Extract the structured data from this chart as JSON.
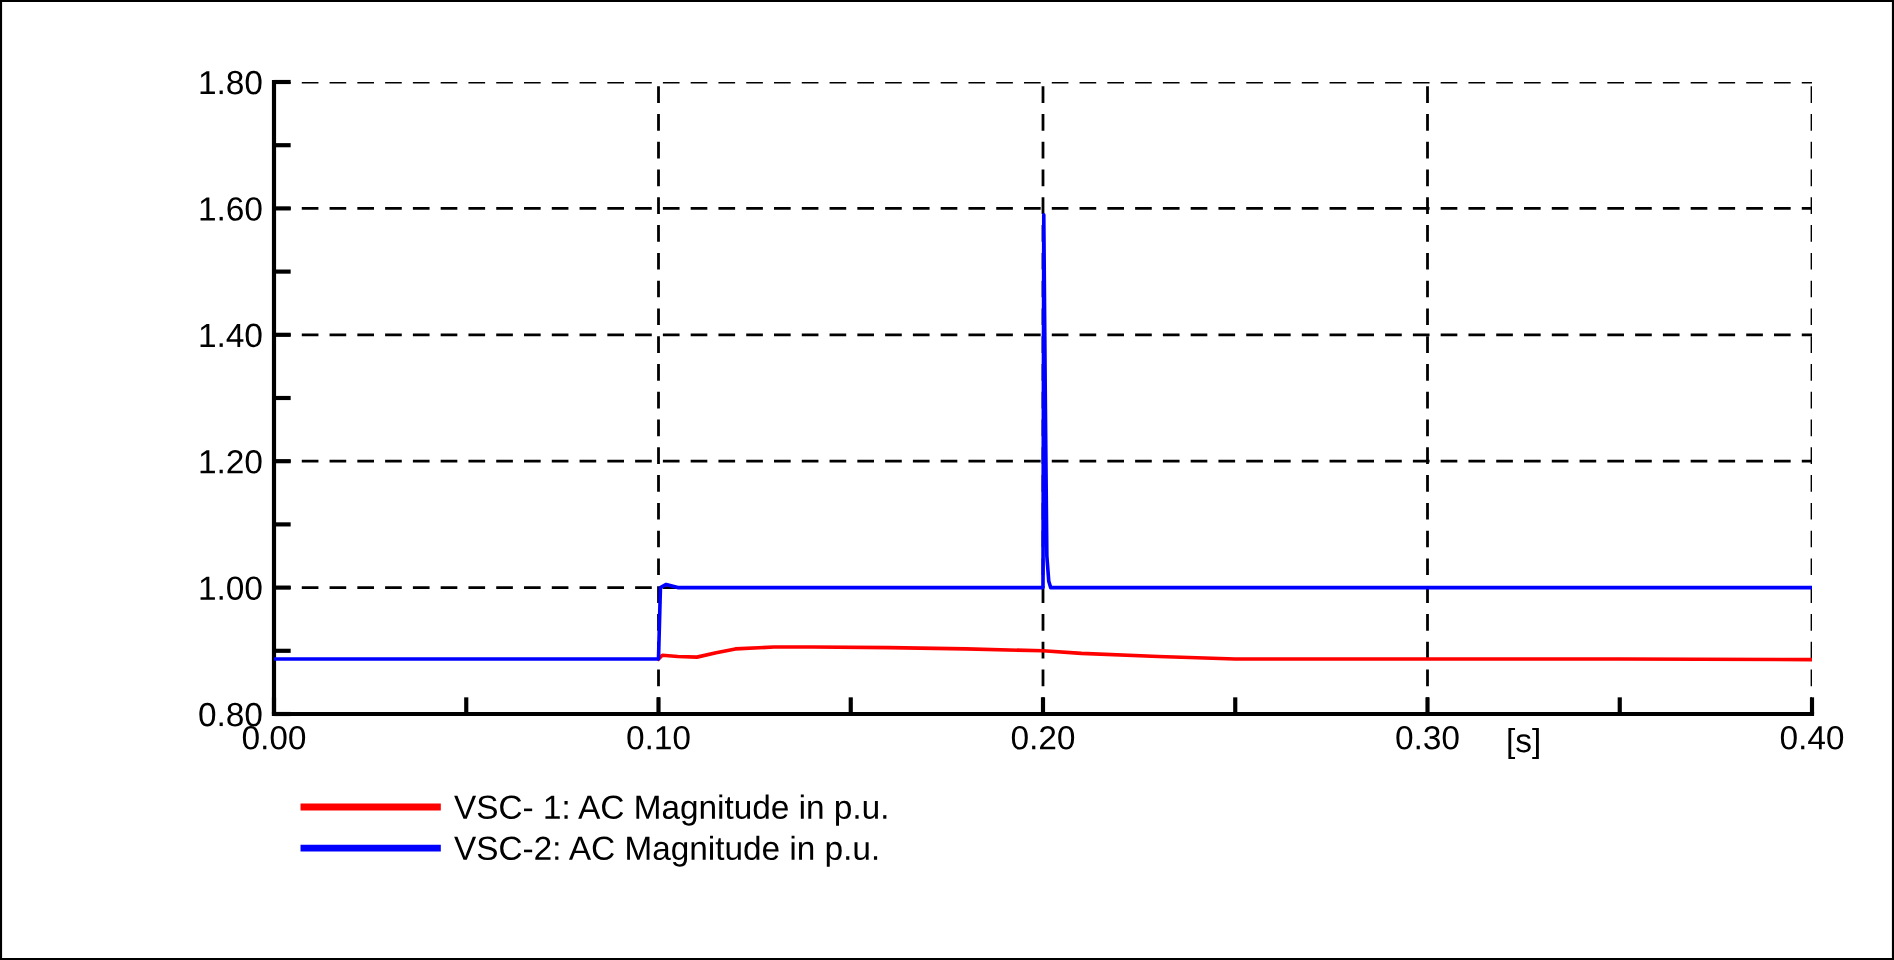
{
  "chart_data": {
    "type": "line",
    "xlabel": "[s]",
    "xlim": [
      0,
      0.4
    ],
    "ylim": [
      0.8,
      1.8
    ],
    "xticks": [
      {
        "value": 0,
        "label": "0.00"
      },
      {
        "value": 0.05,
        "label": null
      },
      {
        "value": 0.1,
        "label": "0.10"
      },
      {
        "value": 0.15,
        "label": null
      },
      {
        "value": 0.2,
        "label": "0.20"
      },
      {
        "value": 0.25,
        "label": null
      },
      {
        "value": 0.3,
        "label": "0.30"
      },
      {
        "value": 0.35,
        "label": null
      },
      {
        "value": 0.4,
        "label": "0.40"
      }
    ],
    "yticks": [
      {
        "value": 0.8,
        "label": "0.80"
      },
      {
        "value": 0.9,
        "label": null
      },
      {
        "value": 1.0,
        "label": "1.00"
      },
      {
        "value": 1.1,
        "label": null
      },
      {
        "value": 1.2,
        "label": "1.20"
      },
      {
        "value": 1.3,
        "label": null
      },
      {
        "value": 1.4,
        "label": "1.40"
      },
      {
        "value": 1.5,
        "label": null
      },
      {
        "value": 1.6,
        "label": "1.60"
      },
      {
        "value": 1.7,
        "label": null
      },
      {
        "value": 1.8,
        "label": "1.80"
      }
    ],
    "grid": true,
    "legend": "bottom left",
    "line_style": "solid",
    "marker": "none",
    "series": [
      {
        "name": "VSC- 1: AC Magnitude in p.u.",
        "color": "#ff0000",
        "x": [
          0.1,
          0.101,
          0.105,
          0.11,
          0.115,
          0.12,
          0.13,
          0.14,
          0.16,
          0.18,
          0.2,
          0.21,
          0.23,
          0.25,
          0.3,
          0.35,
          0.4
        ],
        "values": [
          0.887,
          0.893,
          0.891,
          0.89,
          0.897,
          0.903,
          0.906,
          0.906,
          0.905,
          0.903,
          0.9,
          0.896,
          0.891,
          0.887,
          0.887,
          0.887,
          0.886
        ]
      },
      {
        "name": "VSC-2: AC Magnitude in p.u.",
        "color": "#0000ff",
        "x": [
          0,
          0.1,
          0.1005,
          0.102,
          0.105,
          0.2,
          0.2002,
          0.2006,
          0.201,
          0.2015,
          0.202,
          0.25,
          0.3,
          0.35,
          0.4
        ],
        "values": [
          0.887,
          0.887,
          1.0,
          1.005,
          1.0,
          1.0,
          1.59,
          1.3,
          1.05,
          1.01,
          1.0,
          1.0,
          1.0,
          1.0,
          1.0
        ]
      }
    ]
  }
}
